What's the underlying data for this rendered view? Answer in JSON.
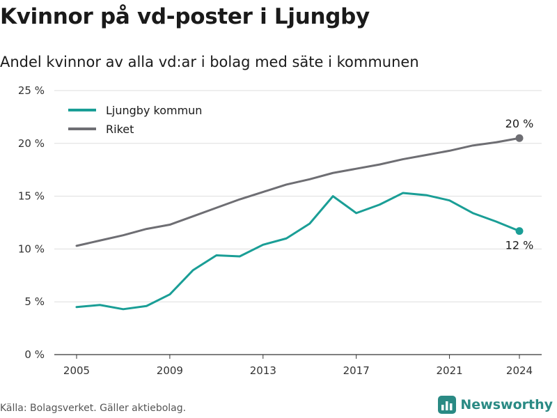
{
  "page": {
    "title": "Kvinnor på vd-poster i Ljungby",
    "subtitle": "Andel kvinnor av alla vd:ar i bolag med säte i kommunen",
    "source": "Källa: Bolagsverket. Gäller aktiebolag.",
    "brand": "Newsworthy",
    "brand_icon": "bar-chart-logo-icon"
  },
  "chart_data": {
    "type": "line",
    "title": "Kvinnor på vd-poster i Ljungby",
    "subtitle": "Andel kvinnor av alla vd:ar i bolag med säte i kommunen",
    "x": [
      2005,
      2006,
      2007,
      2008,
      2009,
      2010,
      2011,
      2012,
      2013,
      2014,
      2015,
      2016,
      2017,
      2018,
      2019,
      2020,
      2021,
      2022,
      2023,
      2024
    ],
    "x_ticks": [
      2005,
      2009,
      2013,
      2017,
      2021,
      2024
    ],
    "y_ticks": [
      0,
      5,
      10,
      15,
      20,
      25
    ],
    "y_tick_labels": [
      "0 %",
      "5 %",
      "10 %",
      "15 %",
      "20 %",
      "25 %"
    ],
    "ylim": [
      0,
      25
    ],
    "grid": true,
    "legend_position": "top-left",
    "series": [
      {
        "name": "Ljungby kommun",
        "color": "#1a9e96",
        "values": [
          4.5,
          4.7,
          4.3,
          4.6,
          5.7,
          8.0,
          9.4,
          9.3,
          10.4,
          11.0,
          12.4,
          15.0,
          13.4,
          14.2,
          15.3,
          15.1,
          14.6,
          13.4,
          12.6,
          11.7
        ],
        "end_label": "12 %",
        "end_label_position": "below"
      },
      {
        "name": "Riket",
        "color": "#6e6e73",
        "values": [
          10.3,
          10.8,
          11.3,
          11.9,
          12.3,
          13.1,
          13.9,
          14.7,
          15.4,
          16.1,
          16.6,
          17.2,
          17.6,
          18.0,
          18.5,
          18.9,
          19.3,
          19.8,
          20.1,
          20.5
        ],
        "end_label": "20 %",
        "end_label_position": "above"
      }
    ]
  }
}
